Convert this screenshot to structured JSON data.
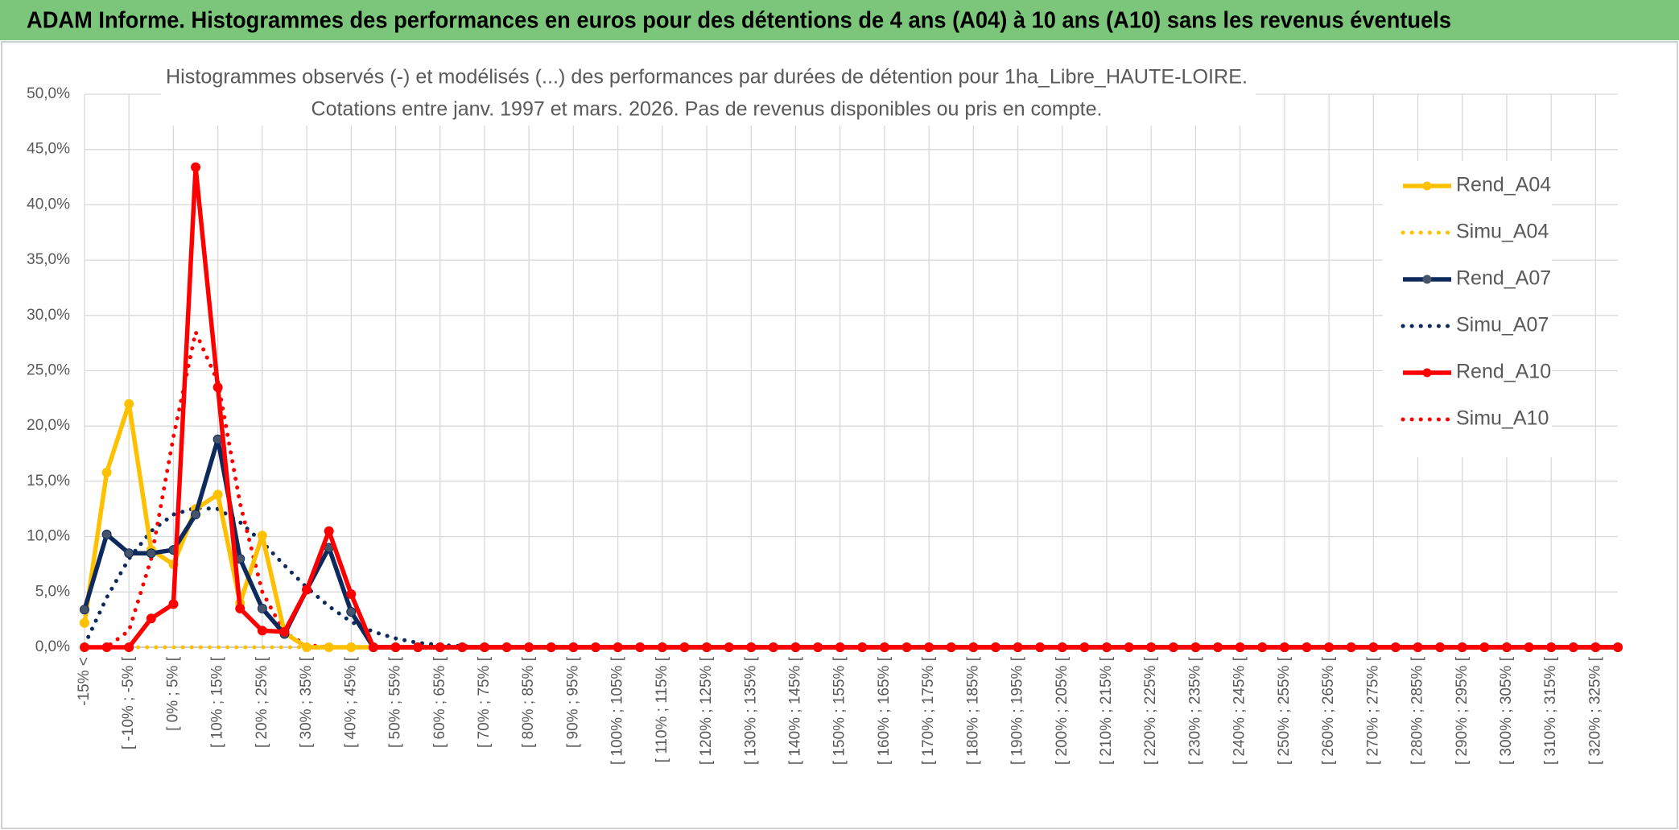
{
  "header": {
    "title": "ADAM Informe. Histogrammes des performances en euros pour des détentions de 4 ans (A04) à 10 ans (A10) sans les revenus éventuels"
  },
  "chart_data": {
    "type": "line",
    "title": "Histogrammes observés (-) et modélisés (...) des performances par durées de détention pour 1ha_Libre_HAUTE-LOIRE.",
    "subtitle": "Cotations entre janv. 1997 et mars. 2026. Pas de revenus disponibles ou pris en compte.",
    "categories": [
      "-15% <",
      null,
      "[ -10% ; -5% [",
      null,
      "[ 0% ; 5% [",
      null,
      "[ 10% ; 15% [",
      null,
      "[ 20% ; 25% [",
      null,
      "[ 30% ; 35% [",
      null,
      "[ 40% ; 45% [",
      null,
      "[ 50% ; 55% [",
      null,
      "[ 60% ; 65% [",
      null,
      "[ 70% ; 75% [",
      null,
      "[ 80% ; 85% [",
      null,
      "[ 90% ; 95% [",
      null,
      "[ 100% ; 105% [",
      null,
      "[ 110% ; 115% [",
      null,
      "[ 120% ; 125% [",
      null,
      "[ 130% ; 135% [",
      null,
      "[ 140% ; 145% [",
      null,
      "[ 150% ; 155% [",
      null,
      "[ 160% ; 165% [",
      null,
      "[ 170% ; 175% [",
      null,
      "[ 180% ; 185% [",
      null,
      "[ 190% ; 195% [",
      null,
      "[ 200% ; 205% [",
      null,
      "[ 210% ; 215% [",
      null,
      "[ 220% ; 225% [",
      null,
      "[ 230% ; 235% [",
      null,
      "[ 240% ; 245% [",
      null,
      "[ 250% ; 255% [",
      null,
      "[ 260% ; 265% [",
      null,
      "[ 270% ; 275% [",
      null,
      "[ 280% ; 285% [",
      null,
      "[ 290% ; 295% [",
      null,
      "[ 300% ; 305% [",
      null,
      "[ 310% ; 315% [",
      null,
      "[ 320% ; 325% [",
      null
    ],
    "series": [
      {
        "name": "Rend_A04",
        "color": "#FFC000",
        "style": "solid",
        "markers": true,
        "values": [
          2.2,
          15.8,
          22.0,
          8.8,
          7.5,
          12.5,
          13.8,
          4.0,
          10.1,
          1.3,
          0,
          0,
          0,
          0,
          0,
          0,
          0,
          0,
          0,
          0,
          0,
          0,
          0,
          0,
          0,
          0,
          0,
          0,
          0,
          0,
          0,
          0,
          0,
          0,
          0,
          0,
          0,
          0,
          0,
          0,
          0,
          0,
          0,
          0,
          0,
          0,
          0,
          0,
          0,
          0,
          0,
          0,
          0,
          0,
          0,
          0,
          0,
          0,
          0,
          0,
          0,
          0,
          0,
          0,
          0,
          0,
          0,
          0,
          0,
          0
        ]
      },
      {
        "name": "Simu_A04",
        "color": "#FFC000",
        "style": "dotted",
        "markers": false,
        "values": [
          0,
          0,
          0,
          0,
          0,
          0,
          0,
          0,
          0,
          0,
          0,
          0,
          0,
          0,
          0,
          0,
          0,
          0,
          0,
          0,
          0,
          0,
          0,
          0,
          0,
          0,
          0,
          0,
          0,
          0,
          0,
          0,
          0,
          0,
          0,
          0,
          0,
          0,
          0,
          0,
          0,
          0,
          0,
          0,
          0,
          0,
          0,
          0,
          0,
          0,
          0,
          0,
          0,
          0,
          0,
          0,
          0,
          0,
          0,
          0,
          0,
          0,
          0,
          0,
          0,
          0,
          0,
          0,
          0,
          0
        ]
      },
      {
        "name": "Rend_A07",
        "color": "#0E2A5C",
        "style": "solid",
        "markers": true,
        "values": [
          3.4,
          10.2,
          8.5,
          8.5,
          8.8,
          12.0,
          18.8,
          8.0,
          3.5,
          1.2,
          5.2,
          9.0,
          3.2,
          0,
          0,
          0,
          0,
          0,
          0,
          0,
          0,
          0,
          0,
          0,
          0,
          0,
          0,
          0,
          0,
          0,
          0,
          0,
          0,
          0,
          0,
          0,
          0,
          0,
          0,
          0,
          0,
          0,
          0,
          0,
          0,
          0,
          0,
          0,
          0,
          0,
          0,
          0,
          0,
          0,
          0,
          0,
          0,
          0,
          0,
          0,
          0,
          0,
          0,
          0,
          0,
          0,
          0,
          0,
          0,
          0
        ]
      },
      {
        "name": "Simu_A07",
        "color": "#0E2A5C",
        "style": "dotted",
        "markers": false,
        "values": [
          0.2,
          4.5,
          8.0,
          10.5,
          12.0,
          12.6,
          12.5,
          11.3,
          9.5,
          7.4,
          5.4,
          3.7,
          2.3,
          1.4,
          0.8,
          0.4,
          0.2,
          0.1,
          0,
          0,
          0,
          0,
          0,
          0,
          0,
          0,
          0,
          0,
          0,
          0,
          0,
          0,
          0,
          0,
          0,
          0,
          0,
          0,
          0,
          0,
          0,
          0,
          0,
          0,
          0,
          0,
          0,
          0,
          0,
          0,
          0,
          0,
          0,
          0,
          0,
          0,
          0,
          0,
          0,
          0,
          0,
          0,
          0,
          0,
          0,
          0,
          0,
          0,
          0,
          0
        ]
      },
      {
        "name": "Rend_A10",
        "color": "#FF0000",
        "style": "solid",
        "markers": true,
        "values": [
          0,
          0,
          0,
          2.6,
          3.9,
          43.4,
          23.5,
          3.5,
          1.5,
          1.4,
          5.2,
          10.5,
          4.8,
          0,
          0,
          0,
          0,
          0,
          0,
          0,
          0,
          0,
          0,
          0,
          0,
          0,
          0,
          0,
          0,
          0,
          0,
          0,
          0,
          0,
          0,
          0,
          0,
          0,
          0,
          0,
          0,
          0,
          0,
          0,
          0,
          0,
          0,
          0,
          0,
          0,
          0,
          0,
          0,
          0,
          0,
          0,
          0,
          0,
          0,
          0,
          0,
          0,
          0,
          0,
          0,
          0,
          0,
          0,
          0,
          0
        ]
      },
      {
        "name": "Simu_A10",
        "color": "#FF0000",
        "style": "dotted",
        "markers": false,
        "values": [
          0,
          0,
          1.5,
          8.0,
          19.0,
          28.5,
          24.0,
          13.0,
          5.0,
          1.3,
          0.2,
          0,
          0,
          0,
          0,
          0,
          0,
          0,
          0,
          0,
          0,
          0,
          0,
          0,
          0,
          0,
          0,
          0,
          0,
          0,
          0,
          0,
          0,
          0,
          0,
          0,
          0,
          0,
          0,
          0,
          0,
          0,
          0,
          0,
          0,
          0,
          0,
          0,
          0,
          0,
          0,
          0,
          0,
          0,
          0,
          0,
          0,
          0,
          0,
          0,
          0,
          0,
          0,
          0,
          0,
          0,
          0,
          0,
          0,
          0
        ]
      }
    ],
    "ylim": [
      0,
      50
    ],
    "yticks": [
      {
        "value": 0,
        "label": "0,0%"
      },
      {
        "value": 5,
        "label": "5,0%"
      },
      {
        "value": 10,
        "label": "10,0%"
      },
      {
        "value": 15,
        "label": "15,0%"
      },
      {
        "value": 20,
        "label": "20,0%"
      },
      {
        "value": 25,
        "label": "25,0%"
      },
      {
        "value": 30,
        "label": "30,0%"
      },
      {
        "value": 35,
        "label": "35,0%"
      },
      {
        "value": 40,
        "label": "40,0%"
      },
      {
        "value": 45,
        "label": "45,0%"
      },
      {
        "value": 50,
        "label": "50,0%"
      }
    ],
    "grid": true,
    "legend": "upper right"
  }
}
